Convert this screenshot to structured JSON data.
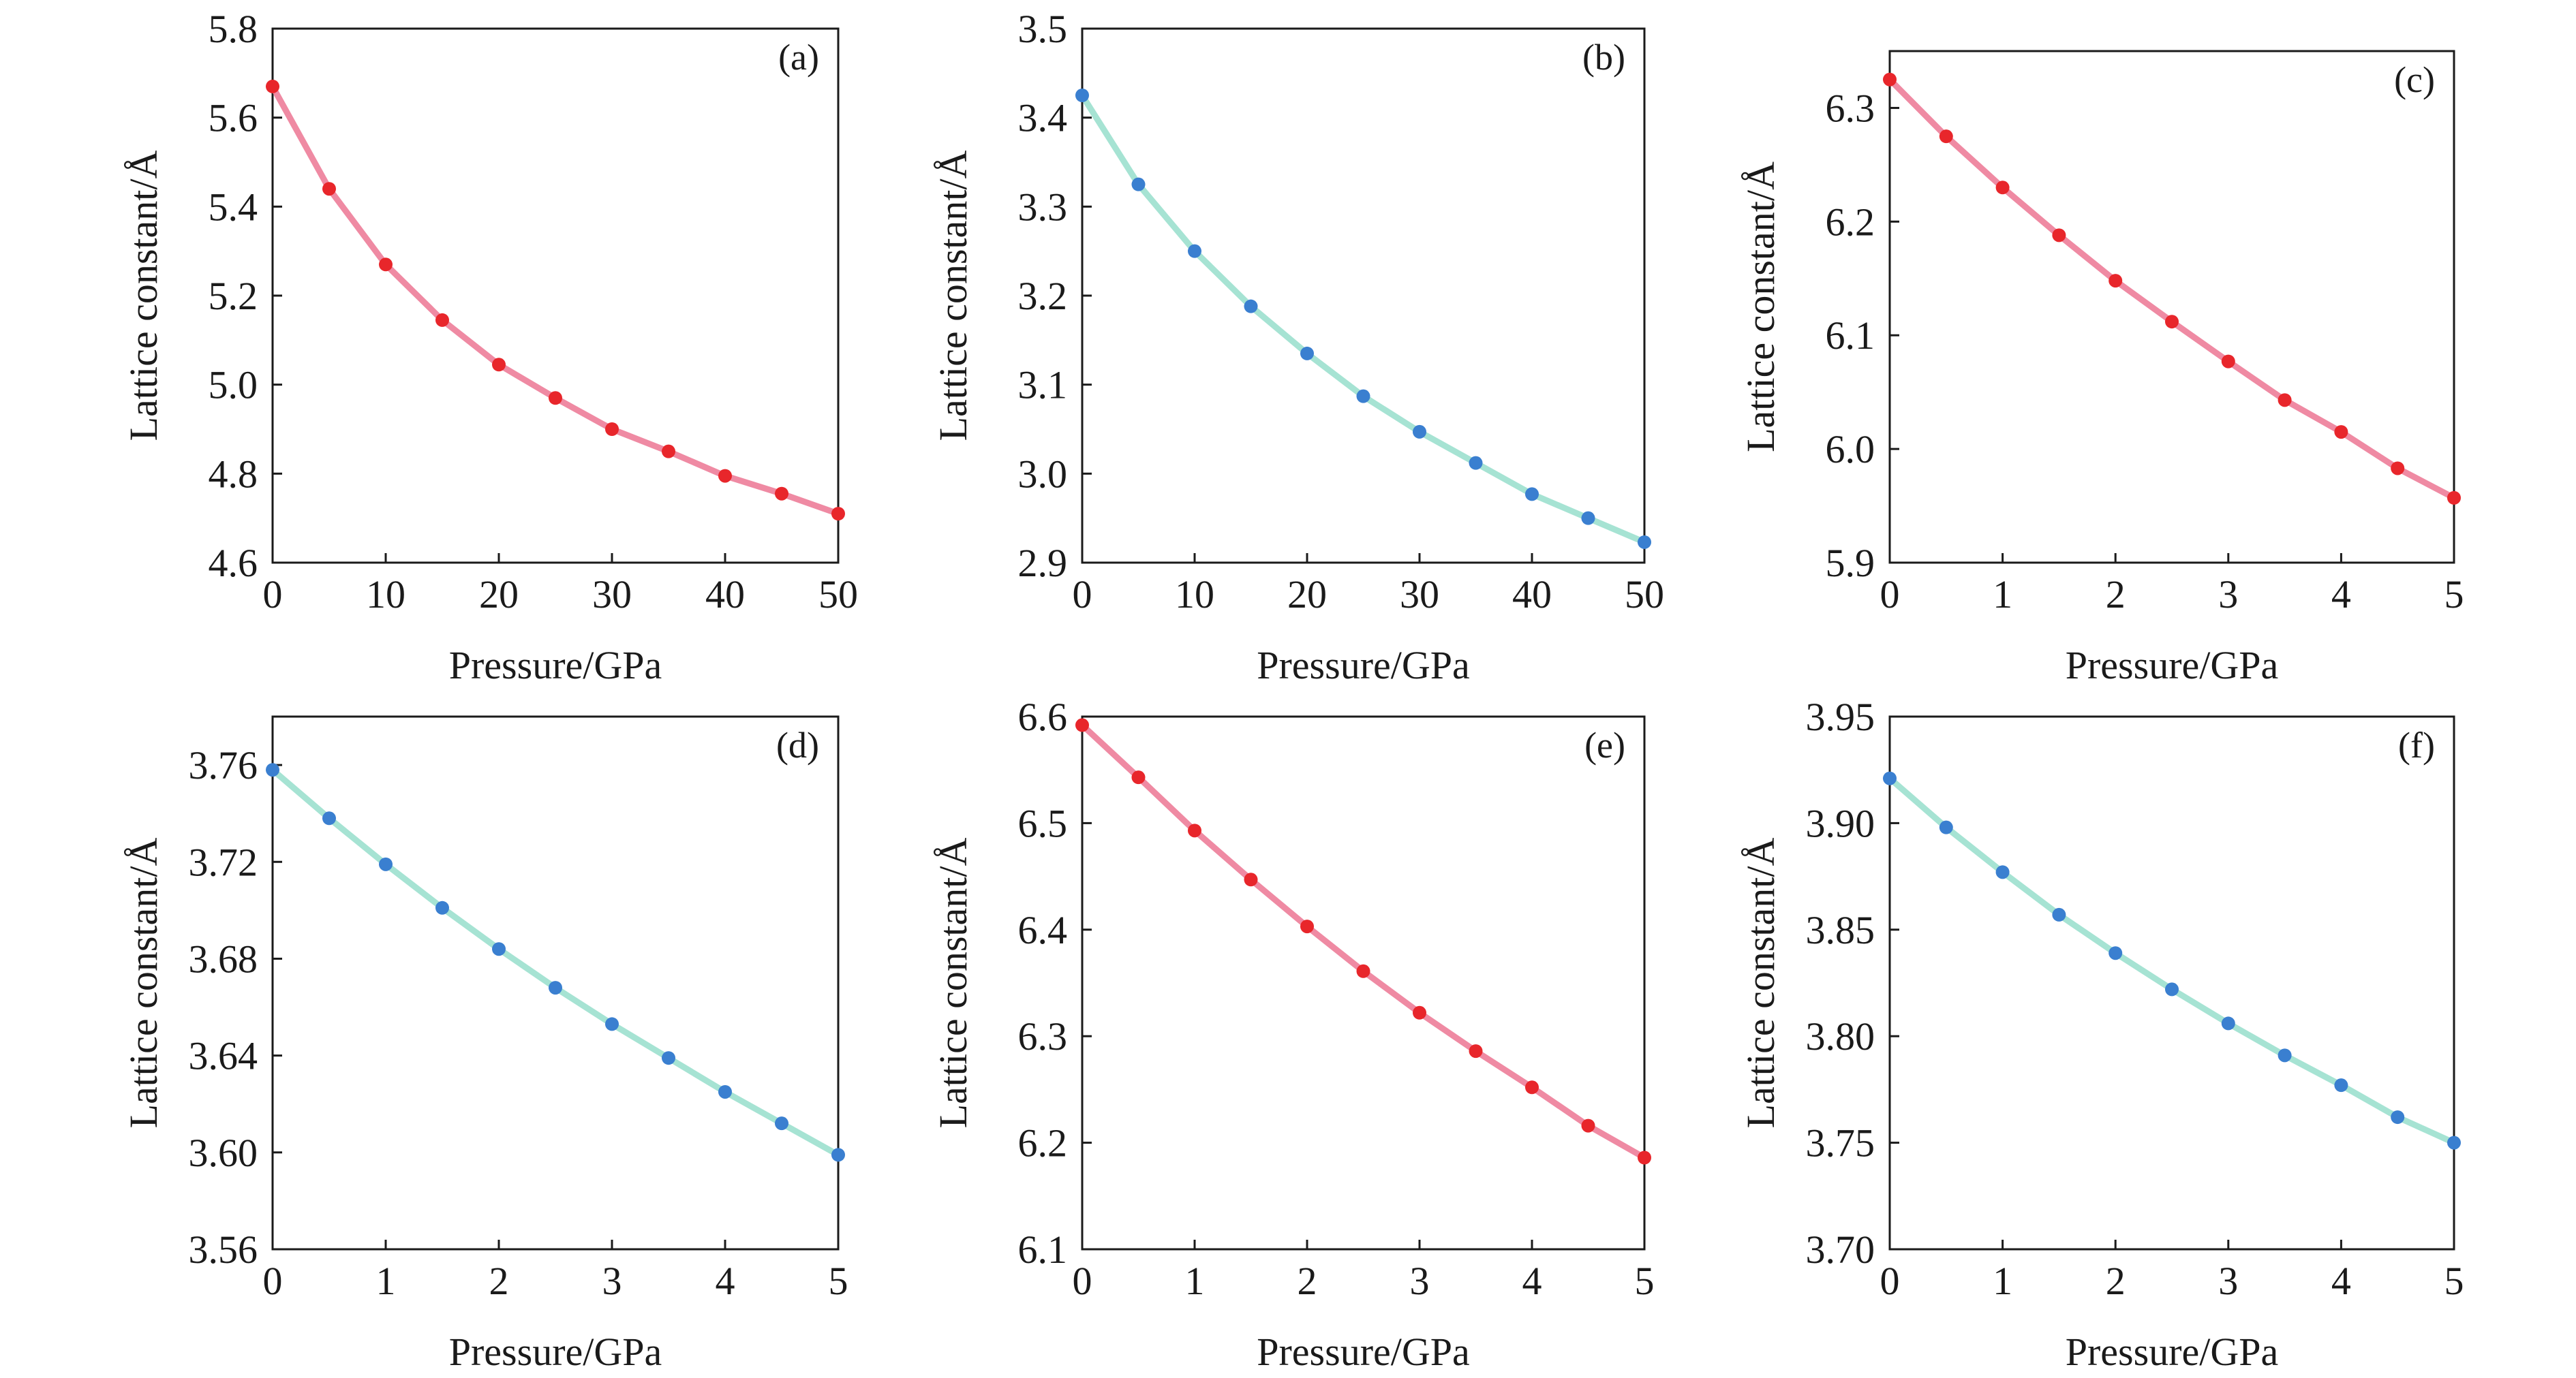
{
  "chart_data": [
    {
      "type": "line",
      "panel_label": "(a)",
      "xlabel": "Pressure/GPa",
      "ylabel": "Lattice constant/Å",
      "xlim": [
        0,
        50
      ],
      "ylim": [
        4.6,
        5.8
      ],
      "xticks": [
        "0",
        "10",
        "20",
        "30",
        "40",
        "50"
      ],
      "yticks": [
        "4.6",
        "4.8",
        "5.0",
        "5.2",
        "5.4",
        "5.6",
        "5.8"
      ],
      "line_color": "#ef8aa3",
      "marker_color": "#e8262b",
      "x": [
        0,
        5,
        10,
        15,
        20,
        25,
        30,
        35,
        40,
        45,
        50
      ],
      "y": [
        5.67,
        5.44,
        5.27,
        5.145,
        5.045,
        4.97,
        4.9,
        4.85,
        4.795,
        4.755,
        4.71
      ]
    },
    {
      "type": "line",
      "panel_label": "(b)",
      "xlabel": "Pressure/GPa",
      "ylabel": "Lattice constant/Å",
      "xlim": [
        0,
        50
      ],
      "ylim": [
        2.9,
        3.5
      ],
      "xticks": [
        "0",
        "10",
        "20",
        "30",
        "40",
        "50"
      ],
      "yticks": [
        "2.9",
        "3.0",
        "3.1",
        "3.2",
        "3.3",
        "3.4",
        "3.5"
      ],
      "line_color": "#a6e3d3",
      "marker_color": "#3a7fd0",
      "x": [
        0,
        5,
        10,
        15,
        20,
        25,
        30,
        35,
        40,
        45,
        50
      ],
      "y": [
        3.425,
        3.325,
        3.25,
        3.188,
        3.135,
        3.087,
        3.047,
        3.012,
        2.977,
        2.95,
        2.923
      ]
    },
    {
      "type": "line",
      "panel_label": "(c)",
      "xlabel": "Pressure/GPa",
      "ylabel": "Lattice constant/Å",
      "xlim": [
        0,
        5
      ],
      "ylim": [
        5.9,
        6.35
      ],
      "xticks": [
        "0",
        "1",
        "2",
        "3",
        "4",
        "5"
      ],
      "yticks": [
        "5.9",
        "6.0",
        "6.1",
        "6.2",
        "6.3"
      ],
      "line_color": "#ef8aa3",
      "marker_color": "#e8262b",
      "x": [
        0,
        0.5,
        1.0,
        1.5,
        2.0,
        2.5,
        3.0,
        3.5,
        4.0,
        4.5,
        5.0
      ],
      "y": [
        6.325,
        6.275,
        6.23,
        6.188,
        6.148,
        6.112,
        6.077,
        6.043,
        6.015,
        5.983,
        5.957
      ]
    },
    {
      "type": "line",
      "panel_label": "(d)",
      "xlabel": "Pressure/GPa",
      "ylabel": "Lattice constant/Å",
      "xlim": [
        0,
        5
      ],
      "ylim": [
        3.56,
        3.78
      ],
      "xticks": [
        "0",
        "1",
        "2",
        "3",
        "4",
        "5"
      ],
      "yticks": [
        "3.56",
        "3.60",
        "3.64",
        "3.68",
        "3.72",
        "3.76"
      ],
      "line_color": "#a6e3d3",
      "marker_color": "#3a7fd0",
      "x": [
        0,
        0.5,
        1.0,
        1.5,
        2.0,
        2.5,
        3.0,
        3.5,
        4.0,
        4.5,
        5.0
      ],
      "y": [
        3.758,
        3.738,
        3.719,
        3.701,
        3.684,
        3.668,
        3.653,
        3.639,
        3.625,
        3.612,
        3.599
      ]
    },
    {
      "type": "line",
      "panel_label": "(e)",
      "xlabel": "Pressure/GPa",
      "ylabel": "Lattice constant/Å",
      "xlim": [
        0,
        5
      ],
      "ylim": [
        6.1,
        6.6
      ],
      "xticks": [
        "0",
        "1",
        "2",
        "3",
        "4",
        "5"
      ],
      "yticks": [
        "6.1",
        "6.2",
        "6.3",
        "6.4",
        "6.5",
        "6.6"
      ],
      "line_color": "#ef8aa3",
      "marker_color": "#e8262b",
      "x": [
        0,
        0.5,
        1.0,
        1.5,
        2.0,
        2.5,
        3.0,
        3.5,
        4.0,
        4.5,
        5.0
      ],
      "y": [
        6.592,
        6.543,
        6.493,
        6.447,
        6.403,
        6.361,
        6.322,
        6.286,
        6.252,
        6.216,
        6.186
      ]
    },
    {
      "type": "line",
      "panel_label": "(f)",
      "xlabel": "Pressure/GPa",
      "ylabel": "Lattice constant/Å",
      "xlim": [
        0,
        5
      ],
      "ylim": [
        3.7,
        3.95
      ],
      "xticks": [
        "0",
        "1",
        "2",
        "3",
        "4",
        "5"
      ],
      "yticks": [
        "3.70",
        "3.75",
        "3.80",
        "3.85",
        "3.90",
        "3.95"
      ],
      "line_color": "#a6e3d3",
      "marker_color": "#3a7fd0",
      "x": [
        0,
        0.5,
        1.0,
        1.5,
        2.0,
        2.5,
        3.0,
        3.5,
        4.0,
        4.5,
        5.0
      ],
      "y": [
        3.921,
        3.898,
        3.877,
        3.857,
        3.839,
        3.822,
        3.806,
        3.791,
        3.777,
        3.762,
        3.75
      ]
    }
  ]
}
